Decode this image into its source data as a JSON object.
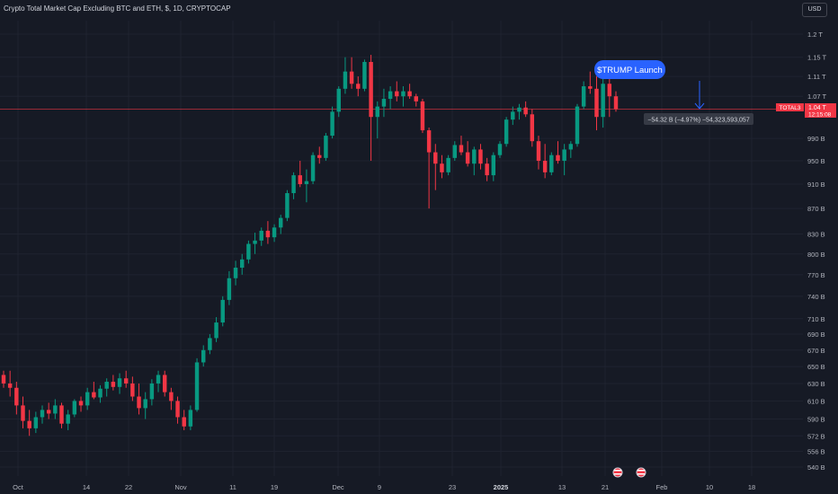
{
  "header": {
    "title": "Crypto Total Market Cap Excluding BTC and ETH, $, 1D, CRYPTOCAP",
    "currency": "USD"
  },
  "colors": {
    "up": "#089981",
    "down": "#f23645",
    "grid": "#1f2330",
    "background": "#161a25",
    "annotation": "#2962ff"
  },
  "chart_data": {
    "type": "candlestick",
    "y_scale": "log",
    "ylim": [
      540,
      1210
    ],
    "y_ticks": [
      "1.2 T",
      "1.15 T",
      "1.11 T",
      "1.07 T",
      "990 B",
      "950 B",
      "910 B",
      "870 B",
      "830 B",
      "800 B",
      "770 B",
      "740 B",
      "710 B",
      "690 B",
      "670 B",
      "650 B",
      "630 B",
      "610 B",
      "590 B",
      "572 B",
      "556 B",
      "540 B"
    ],
    "x_ticks": [
      "Oct",
      "14",
      "22",
      "Nov",
      "11",
      "19",
      "Dec",
      "9",
      "23",
      "2025",
      "13",
      "21",
      "Feb",
      "10",
      "18"
    ],
    "candles": [
      [
        640,
        645,
        625,
        630
      ],
      [
        630,
        645,
        615,
        625
      ],
      [
        625,
        632,
        595,
        605
      ],
      [
        605,
        615,
        580,
        588
      ],
      [
        588,
        600,
        572,
        580
      ],
      [
        580,
        598,
        575,
        592
      ],
      [
        592,
        605,
        585,
        600
      ],
      [
        600,
        608,
        590,
        596
      ],
      [
        596,
        612,
        590,
        605
      ],
      [
        605,
        608,
        580,
        585
      ],
      [
        585,
        600,
        578,
        595
      ],
      [
        595,
        612,
        592,
        610
      ],
      [
        610,
        615,
        598,
        605
      ],
      [
        605,
        625,
        600,
        620
      ],
      [
        620,
        632,
        612,
        614
      ],
      [
        614,
        628,
        608,
        624
      ],
      [
        624,
        636,
        615,
        632
      ],
      [
        632,
        640,
        622,
        626
      ],
      [
        626,
        642,
        618,
        636
      ],
      [
        636,
        645,
        625,
        630
      ],
      [
        630,
        638,
        610,
        615
      ],
      [
        615,
        630,
        595,
        602
      ],
      [
        602,
        620,
        590,
        612
      ],
      [
        612,
        635,
        605,
        630
      ],
      [
        630,
        645,
        620,
        640
      ],
      [
        640,
        645,
        615,
        620
      ],
      [
        620,
        625,
        600,
        610
      ],
      [
        610,
        615,
        585,
        592
      ],
      [
        592,
        600,
        578,
        582
      ],
      [
        582,
        605,
        578,
        600
      ],
      [
        600,
        660,
        598,
        655
      ],
      [
        655,
        676,
        650,
        670
      ],
      [
        670,
        690,
        665,
        685
      ],
      [
        685,
        712,
        680,
        705
      ],
      [
        705,
        740,
        700,
        735
      ],
      [
        735,
        775,
        728,
        765
      ],
      [
        765,
        790,
        755,
        780
      ],
      [
        780,
        800,
        770,
        792
      ],
      [
        792,
        820,
        786,
        815
      ],
      [
        815,
        832,
        800,
        820
      ],
      [
        820,
        840,
        812,
        835
      ],
      [
        835,
        850,
        815,
        825
      ],
      [
        825,
        845,
        818,
        840
      ],
      [
        840,
        860,
        830,
        855
      ],
      [
        855,
        900,
        850,
        895
      ],
      [
        895,
        930,
        885,
        925
      ],
      [
        925,
        950,
        905,
        910
      ],
      [
        910,
        935,
        880,
        915
      ],
      [
        915,
        965,
        910,
        960
      ],
      [
        960,
        975,
        945,
        955
      ],
      [
        955,
        1000,
        950,
        995
      ],
      [
        995,
        1050,
        990,
        1040
      ],
      [
        1040,
        1090,
        1030,
        1085
      ],
      [
        1085,
        1150,
        1075,
        1120
      ],
      [
        1120,
        1150,
        1085,
        1095
      ],
      [
        1095,
        1110,
        1070,
        1085
      ],
      [
        1085,
        1145,
        1080,
        1140
      ],
      [
        1140,
        1155,
        950,
        1030
      ],
      [
        1030,
        1060,
        990,
        1050
      ],
      [
        1050,
        1085,
        1030,
        1065
      ],
      [
        1065,
        1090,
        1045,
        1080
      ],
      [
        1080,
        1100,
        1060,
        1070
      ],
      [
        1070,
        1090,
        1050,
        1080
      ],
      [
        1080,
        1095,
        1065,
        1070
      ],
      [
        1070,
        1075,
        1050,
        1060
      ],
      [
        1060,
        1065,
        1000,
        1005
      ],
      [
        1005,
        1010,
        870,
        965
      ],
      [
        965,
        980,
        900,
        945
      ],
      [
        945,
        960,
        920,
        930
      ],
      [
        930,
        960,
        925,
        955
      ],
      [
        955,
        985,
        950,
        978
      ],
      [
        978,
        995,
        960,
        965
      ],
      [
        965,
        985,
        940,
        945
      ],
      [
        945,
        975,
        925,
        970
      ],
      [
        970,
        980,
        935,
        945
      ],
      [
        945,
        955,
        915,
        925
      ],
      [
        925,
        965,
        915,
        960
      ],
      [
        960,
        985,
        955,
        980
      ],
      [
        980,
        1030,
        975,
        1025
      ],
      [
        1025,
        1050,
        1015,
        1040
      ],
      [
        1040,
        1055,
        1025,
        1048
      ],
      [
        1048,
        1060,
        1030,
        1035
      ],
      [
        1035,
        1045,
        975,
        985
      ],
      [
        985,
        995,
        935,
        950
      ],
      [
        950,
        980,
        920,
        930
      ],
      [
        930,
        965,
        925,
        960
      ],
      [
        960,
        985,
        945,
        950
      ],
      [
        950,
        980,
        925,
        970
      ],
      [
        970,
        985,
        955,
        980
      ],
      [
        980,
        1055,
        975,
        1050
      ],
      [
        1050,
        1100,
        1045,
        1090
      ],
      [
        1090,
        1120,
        1075,
        1085
      ],
      [
        1085,
        1110,
        1005,
        1030
      ],
      [
        1030,
        1120,
        1010,
        1095
      ],
      [
        1095,
        1110,
        1030,
        1070
      ],
      [
        1070,
        1080,
        1040,
        1045
      ]
    ],
    "annotations": [
      {
        "label": "$TRUMP Launch"
      },
      {
        "measure": "−54.32 B (−4.97%) −54,323,593,057"
      }
    ],
    "price_tag": {
      "symbol": "TOTAL3",
      "value": "1.04 T",
      "countdown": "12:15:08"
    }
  }
}
